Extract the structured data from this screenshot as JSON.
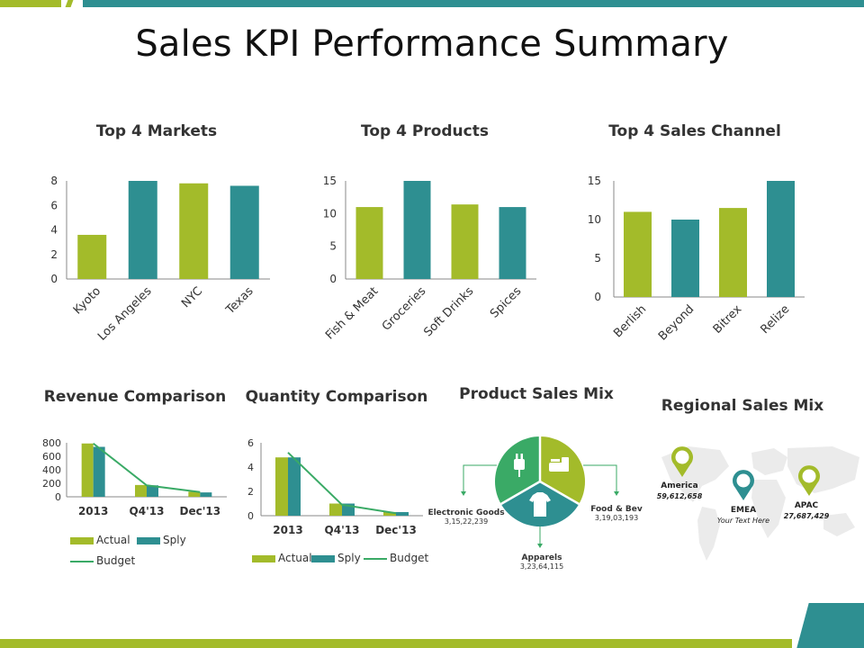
{
  "title": "Sales KPI Performance Summary",
  "colors": {
    "green": "#a3bb2a",
    "teal": "#2e8f91",
    "budget": "#3aaa66"
  },
  "chart_data": [
    {
      "type": "bar",
      "title": "Top 4 Markets",
      "categories": [
        "Kyoto",
        "Los Angeles",
        "NYC",
        "Texas"
      ],
      "values": [
        3.6,
        8,
        7.8,
        7.6
      ],
      "ylim": [
        0,
        8
      ],
      "yticks": [
        0,
        2,
        4,
        6,
        8
      ]
    },
    {
      "type": "bar",
      "title": "Top 4 Products",
      "categories": [
        "Fish & Meat",
        "Groceries",
        "Soft Drinks",
        "Spices"
      ],
      "values": [
        11,
        15,
        11.4,
        11
      ],
      "ylim": [
        0,
        15
      ],
      "yticks": [
        0,
        5,
        10,
        15
      ]
    },
    {
      "type": "bar",
      "title": "Top 4 Sales Channel",
      "categories": [
        "Berlish",
        "Beyond",
        "Bitrex",
        "Relize"
      ],
      "values": [
        11,
        10,
        11.5,
        15
      ],
      "ylim": [
        0,
        15
      ],
      "yticks": [
        0,
        5,
        10,
        15
      ]
    },
    {
      "type": "bar",
      "title": "Revenue Comparison",
      "categories": [
        "2013",
        "Q4'13",
        "Dec'13"
      ],
      "series": [
        {
          "name": "Actual",
          "values": [
            790,
            175,
            75
          ]
        },
        {
          "name": "Sply",
          "values": [
            740,
            170,
            65
          ]
        },
        {
          "name": "Budget",
          "values": [
            790,
            170,
            70
          ]
        }
      ],
      "ylim": [
        0,
        800
      ],
      "yticks": [
        0,
        200,
        400,
        600,
        800
      ],
      "legend": [
        "Actual",
        "Sply",
        "Budget"
      ]
    },
    {
      "type": "bar",
      "title": "Quantity Comparison",
      "categories": [
        "2013",
        "Q4'13",
        "Dec'13"
      ],
      "series": [
        {
          "name": "Actual",
          "values": [
            4.8,
            1.0,
            0.3
          ]
        },
        {
          "name": "Sply",
          "values": [
            4.8,
            1.0,
            0.3
          ]
        },
        {
          "name": "Budget",
          "values": [
            5.2,
            0.9,
            0.2
          ]
        }
      ],
      "ylim": [
        0,
        6
      ],
      "yticks": [
        0,
        2,
        4,
        6
      ],
      "legend": [
        "Actual",
        "Sply",
        "Budget"
      ]
    }
  ],
  "product_mix": {
    "title": "Product Sales Mix",
    "items": [
      {
        "label": "Electronic Goods",
        "value": "3,15,22,239",
        "icon": "plug-icon",
        "color": "#3aaa66"
      },
      {
        "label": "Food & Bev",
        "value": "3,19,03,193",
        "icon": "food-icon",
        "color": "#a3bb2a"
      },
      {
        "label": "Apparels",
        "value": "3,23,64,115",
        "icon": "tshirt-icon",
        "color": "#2e8f91"
      }
    ]
  },
  "regional_mix": {
    "title": "Regional Sales Mix",
    "items": [
      {
        "region": "America",
        "value": "59,612,658",
        "pin_color": "#a3bb2a"
      },
      {
        "region": "EMEA",
        "value": "Your Text Here",
        "pin_color": "#2e8f91"
      },
      {
        "region": "APAC",
        "value": "27,687,429",
        "pin_color": "#a3bb2a"
      }
    ]
  }
}
